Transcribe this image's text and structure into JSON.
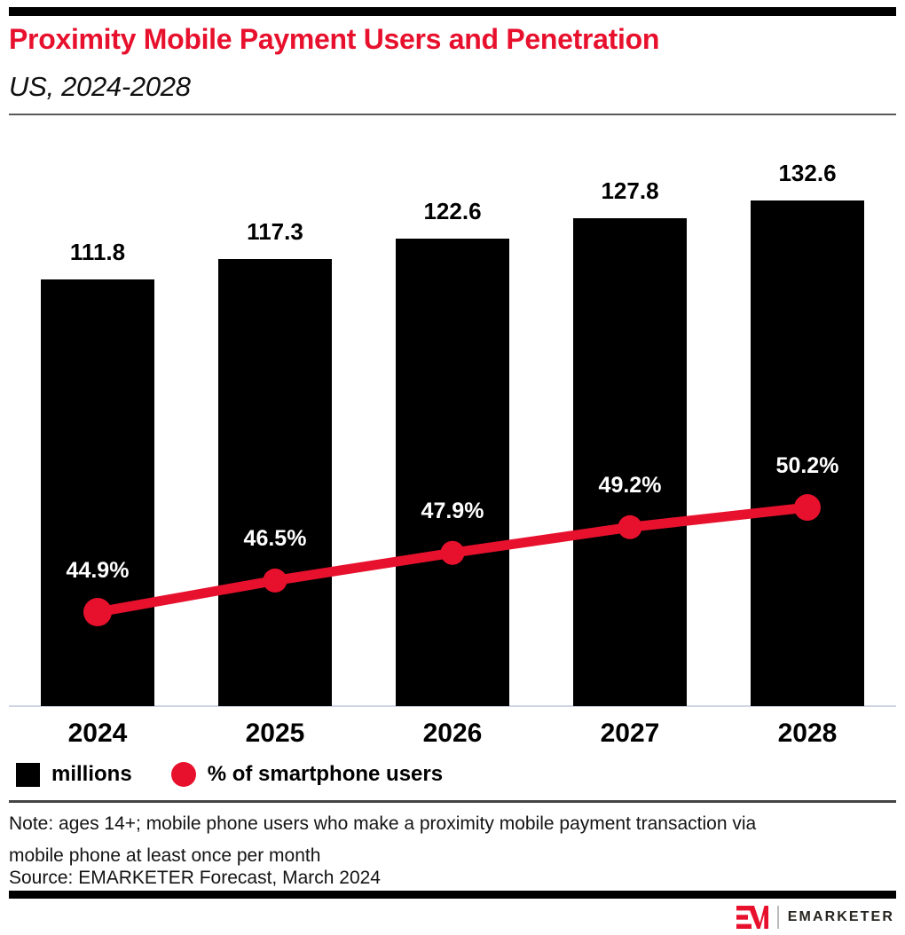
{
  "header": {
    "title": "Proximity Mobile Payment Users and Penetration",
    "subtitle": "US, 2024-2028"
  },
  "chart_data": {
    "type": "bar",
    "subtype": "bar-with-line-overlay",
    "categories": [
      "2024",
      "2025",
      "2026",
      "2027",
      "2028"
    ],
    "series": [
      {
        "name": "millions",
        "type": "bar",
        "values": [
          111.8,
          117.3,
          122.6,
          127.8,
          132.6
        ],
        "color": "#000000",
        "label_color": "#000000"
      },
      {
        "name": "% of smartphone users",
        "type": "line",
        "values": [
          44.9,
          46.5,
          47.9,
          49.2,
          50.2
        ],
        "labels": [
          "44.9%",
          "46.5%",
          "47.9%",
          "49.2%",
          "50.2%"
        ],
        "color": "#e8112d",
        "label_color": "#ffffff"
      }
    ],
    "title": "Proximity Mobile Payment Users and Penetration",
    "subtitle": "US, 2024-2028",
    "xlabel": "",
    "ylabel": "",
    "axes_hidden": true,
    "grid": false,
    "value_labels_shown": true,
    "legend_position": "bottom-left",
    "legend": [
      {
        "label": "millions",
        "swatch": "square",
        "color": "#000000"
      },
      {
        "label": "% of smartphone users",
        "swatch": "circle",
        "color": "#e8112d"
      }
    ]
  },
  "footer": {
    "note_line1": "Note: ages 14+; mobile phone users who make a proximity mobile payment transaction via",
    "note_line2": "mobile phone at least once per month",
    "source": "Source: EMARKETER Forecast, March 2024",
    "logo_text": "EMARKETER"
  },
  "colors": {
    "accent_red": "#e8112d",
    "bar_black": "#000000",
    "baseline": "#cdd5e3",
    "rule_gray": "#58595b"
  }
}
